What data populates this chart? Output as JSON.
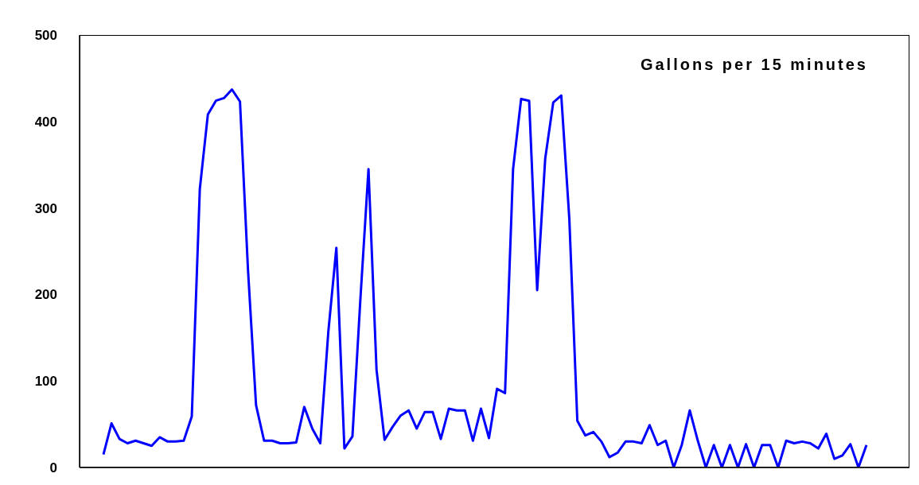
{
  "chart_data": {
    "type": "line",
    "title": "Gallons per 15 minutes",
    "categories": [
      null,
      null,
      null,
      null,
      null,
      null,
      null,
      null,
      null,
      null,
      null,
      null,
      null,
      null,
      null,
      null,
      null,
      null,
      null,
      null,
      null,
      null,
      null,
      null,
      null,
      null,
      null,
      null,
      null,
      null,
      null,
      null,
      null,
      null,
      null,
      null,
      null,
      null,
      null,
      null,
      null,
      null,
      null,
      null,
      null,
      null,
      null,
      null,
      null,
      null,
      null,
      null,
      null,
      null,
      null,
      null,
      null,
      null,
      null,
      null,
      null,
      null,
      null,
      null,
      null,
      null,
      null,
      null,
      null,
      null,
      null,
      null,
      null,
      null,
      null,
      null,
      null,
      null,
      null,
      null,
      null,
      null,
      null,
      null,
      null,
      null,
      null,
      null,
      null,
      null,
      null,
      null,
      null,
      null,
      null,
      null
    ],
    "series": [
      {
        "color": "#0000ff",
        "values": [
          15,
          51,
          33,
          28,
          31,
          28,
          25,
          35,
          30,
          30,
          31,
          59,
          322,
          408,
          424,
          427,
          437,
          423,
          228,
          72,
          31,
          31,
          28,
          28,
          29,
          70,
          45,
          28,
          157,
          254,
          22,
          36,
          196,
          345,
          113,
          32,
          47,
          60,
          66,
          45,
          64,
          64,
          33,
          68,
          66,
          66,
          31,
          68,
          34,
          91,
          86,
          345,
          426,
          424,
          205,
          357,
          422,
          430,
          288,
          54,
          37,
          41,
          30,
          12,
          17,
          30,
          30,
          28,
          49,
          26,
          31,
          0,
          26,
          66,
          31,
          0,
          26,
          0,
          26,
          0,
          27,
          0,
          26,
          26,
          0,
          31,
          28,
          30,
          28,
          22,
          39,
          10,
          14,
          27,
          0,
          26
        ]
      }
    ],
    "ylim": [
      0,
      500
    ],
    "yticks": [
      0,
      100,
      200,
      300,
      400,
      500
    ],
    "grid": false,
    "legend": false,
    "marker": "none",
    "line_style": "solid",
    "tick_labels": "y"
  }
}
